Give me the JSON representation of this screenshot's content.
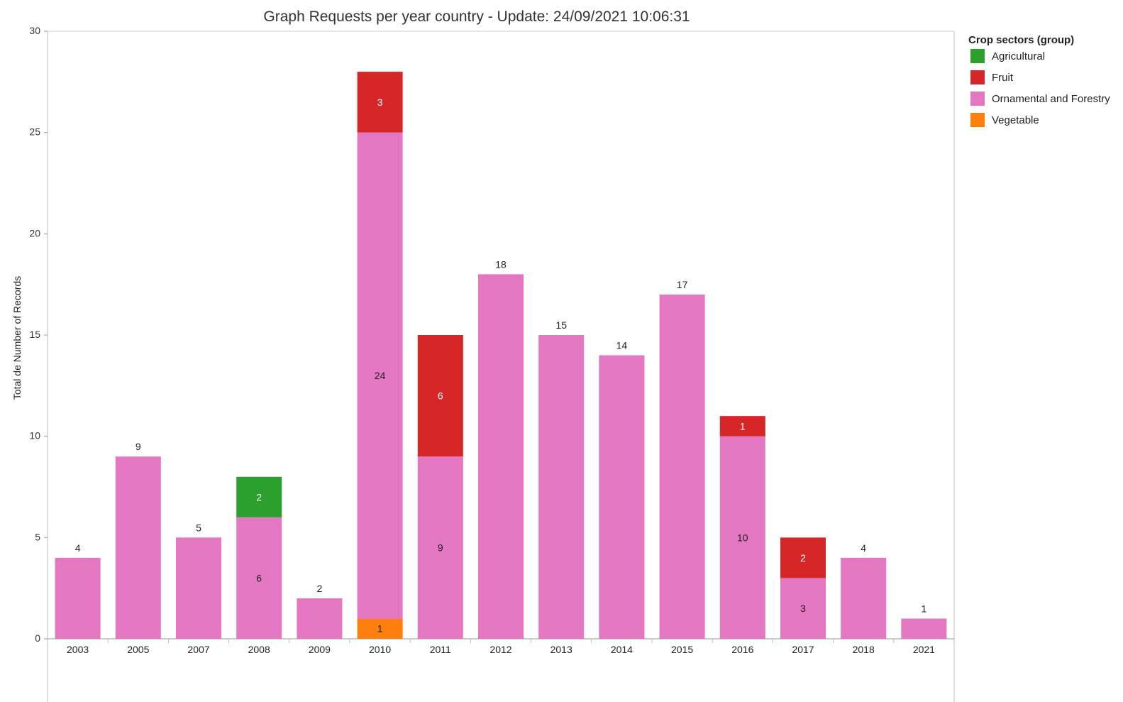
{
  "chart_data": {
    "type": "bar",
    "stacked": true,
    "title": "Graph Requests per year country - Update: 24/09/2021 10:06:31",
    "xlabel": "",
    "ylabel": "Total de Number of Records",
    "ylim": [
      0,
      30
    ],
    "yticks": [
      0,
      5,
      10,
      15,
      20,
      25,
      30
    ],
    "grid": false,
    "legend_title": "Crop sectors (group)",
    "legend_position": "right",
    "categories": [
      "2003",
      "2005",
      "2007",
      "2008",
      "2009",
      "2010",
      "2011",
      "2012",
      "2013",
      "2014",
      "2015",
      "2016",
      "2017",
      "2018",
      "2021"
    ],
    "series": [
      {
        "name": "Vegetable",
        "color": "#ff7f0e",
        "values": [
          0,
          0,
          0,
          0,
          0,
          1,
          0,
          0,
          0,
          0,
          0,
          0,
          0,
          0,
          0
        ]
      },
      {
        "name": "Ornamental and Forestry",
        "color": "#e377c2",
        "values": [
          4,
          9,
          5,
          6,
          2,
          24,
          9,
          18,
          15,
          14,
          17,
          10,
          3,
          4,
          1
        ]
      },
      {
        "name": "Fruit",
        "color": "#d62728",
        "values": [
          0,
          0,
          0,
          0,
          0,
          3,
          6,
          0,
          0,
          0,
          0,
          1,
          2,
          0,
          0
        ]
      },
      {
        "name": "Agricultural",
        "color": "#2ca02c",
        "values": [
          0,
          0,
          0,
          2,
          0,
          0,
          0,
          0,
          0,
          0,
          0,
          0,
          0,
          0,
          0
        ]
      }
    ],
    "legend_order": [
      "Agricultural",
      "Fruit",
      "Ornamental and Forestry",
      "Vegetable"
    ]
  }
}
